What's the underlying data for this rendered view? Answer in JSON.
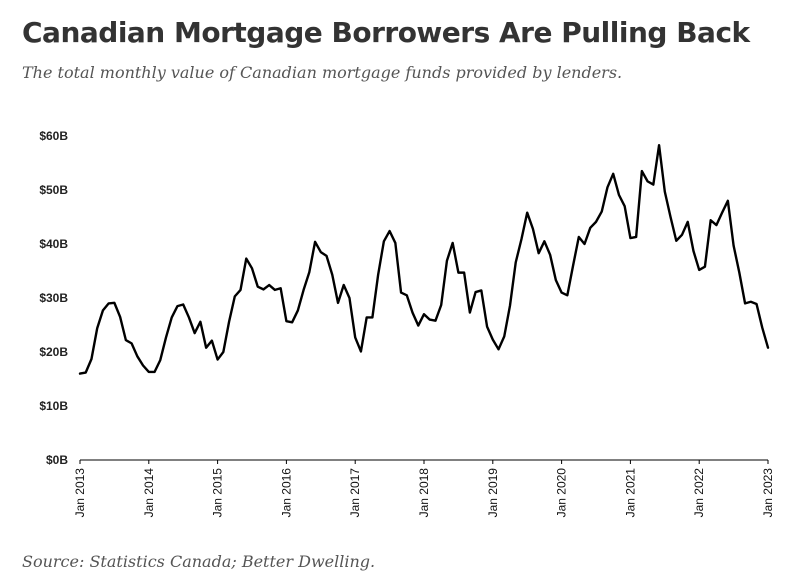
{
  "chart_data": {
    "type": "line",
    "title": "Canadian Mortgage Borrowers Are Pulling Back",
    "subtitle": "The total monthly value of Canadian mortgage funds provided by lenders.",
    "source": "Source: Statistics Canada; Better Dwelling.",
    "y_unit": "billions CAD",
    "ylim": [
      0,
      60
    ],
    "y_ticks": [
      0,
      10,
      20,
      30,
      40,
      50,
      60
    ],
    "y_tick_labels": [
      "$0B",
      "$10B",
      "$20B",
      "$30B",
      "$40B",
      "$50B",
      "$60B"
    ],
    "x_ticks": [
      "Jan 2013",
      "Jan 2014",
      "Jan 2015",
      "Jan 2016",
      "Jan 2017",
      "Jan 2018",
      "Jan 2019",
      "Jan 2020",
      "Jan 2021",
      "Jan 2022",
      "Jan 2023"
    ],
    "xlim": [
      "2013-01",
      "2023-01"
    ],
    "grid": false,
    "legend": "none",
    "line_color": "#000000",
    "series": [
      {
        "x": [
          "2013-01",
          "2013-02",
          "2013-03",
          "2013-04",
          "2013-05",
          "2013-06",
          "2013-07",
          "2013-08",
          "2013-09",
          "2013-10",
          "2013-11",
          "2013-12",
          "2014-01",
          "2014-02",
          "2014-03",
          "2014-04",
          "2014-05",
          "2014-06",
          "2014-07",
          "2014-08",
          "2014-09",
          "2014-10",
          "2014-11",
          "2014-12",
          "2015-01",
          "2015-02",
          "2015-03",
          "2015-04",
          "2015-05",
          "2015-06",
          "2015-07",
          "2015-08",
          "2015-09",
          "2015-10",
          "2015-11",
          "2015-12",
          "2016-01",
          "2016-02",
          "2016-03",
          "2016-04",
          "2016-05",
          "2016-06",
          "2016-07",
          "2016-08",
          "2016-09",
          "2016-10",
          "2016-11",
          "2016-12",
          "2017-01",
          "2017-02",
          "2017-03",
          "2017-04",
          "2017-05",
          "2017-06",
          "2017-07",
          "2017-08",
          "2017-09",
          "2017-10",
          "2017-11",
          "2017-12",
          "2018-01",
          "2018-02",
          "2018-03",
          "2018-04",
          "2018-05",
          "2018-06",
          "2018-07",
          "2018-08",
          "2018-09",
          "2018-10",
          "2018-11",
          "2018-12",
          "2019-01",
          "2019-02",
          "2019-03",
          "2019-04",
          "2019-05",
          "2019-06",
          "2019-07",
          "2019-08",
          "2019-09",
          "2019-10",
          "2019-11",
          "2019-12",
          "2020-01",
          "2020-02",
          "2020-03",
          "2020-04",
          "2020-05",
          "2020-06",
          "2020-07",
          "2020-08",
          "2020-09",
          "2020-10",
          "2020-11",
          "2020-12",
          "2021-01",
          "2021-02",
          "2021-03",
          "2021-04",
          "2021-05",
          "2021-06",
          "2021-07",
          "2021-08",
          "2021-09",
          "2021-10",
          "2021-11",
          "2021-12",
          "2022-01",
          "2022-02",
          "2022-03",
          "2022-04",
          "2022-05",
          "2022-06",
          "2022-07",
          "2022-08",
          "2022-09",
          "2022-10",
          "2022-11",
          "2022-12",
          "2023-01"
        ],
        "values": [
          16.0,
          16.2,
          18.7,
          24.4,
          27.7,
          29.0,
          29.1,
          26.5,
          22.2,
          21.6,
          19.2,
          17.5,
          16.3,
          16.3,
          18.5,
          22.7,
          26.4,
          28.5,
          28.8,
          26.4,
          23.5,
          25.6,
          20.8,
          22.1,
          18.6,
          20.0,
          25.6,
          30.3,
          31.5,
          37.3,
          35.5,
          32.1,
          31.6,
          32.4,
          31.5,
          31.8,
          25.7,
          25.5,
          27.7,
          31.5,
          34.8,
          40.4,
          38.5,
          37.8,
          34.3,
          29.1,
          32.4,
          30.0,
          22.7,
          20.1,
          26.4,
          26.4,
          34.3,
          40.5,
          42.4,
          40.2,
          31.0,
          30.5,
          27.3,
          24.9,
          27.0,
          26.0,
          25.8,
          28.7,
          36.9,
          40.2,
          34.7,
          34.7,
          27.3,
          31.1,
          31.4,
          24.7,
          22.3,
          20.5,
          22.9,
          28.6,
          36.6,
          40.9,
          45.8,
          42.8,
          38.3,
          40.5,
          38.0,
          33.3,
          31.0,
          30.5,
          36.0,
          41.3,
          40.0,
          43.0,
          44.1,
          46.0,
          50.5,
          53.0,
          49.1,
          47.0,
          41.1,
          41.3,
          53.5,
          51.6,
          51.0,
          58.3,
          49.7,
          45.0,
          40.6,
          41.7,
          44.1,
          38.7,
          35.2,
          35.8,
          44.4,
          43.5,
          45.8,
          48.0,
          39.7,
          34.7,
          29.0,
          29.3,
          28.9,
          24.5,
          20.8
        ]
      }
    ]
  }
}
